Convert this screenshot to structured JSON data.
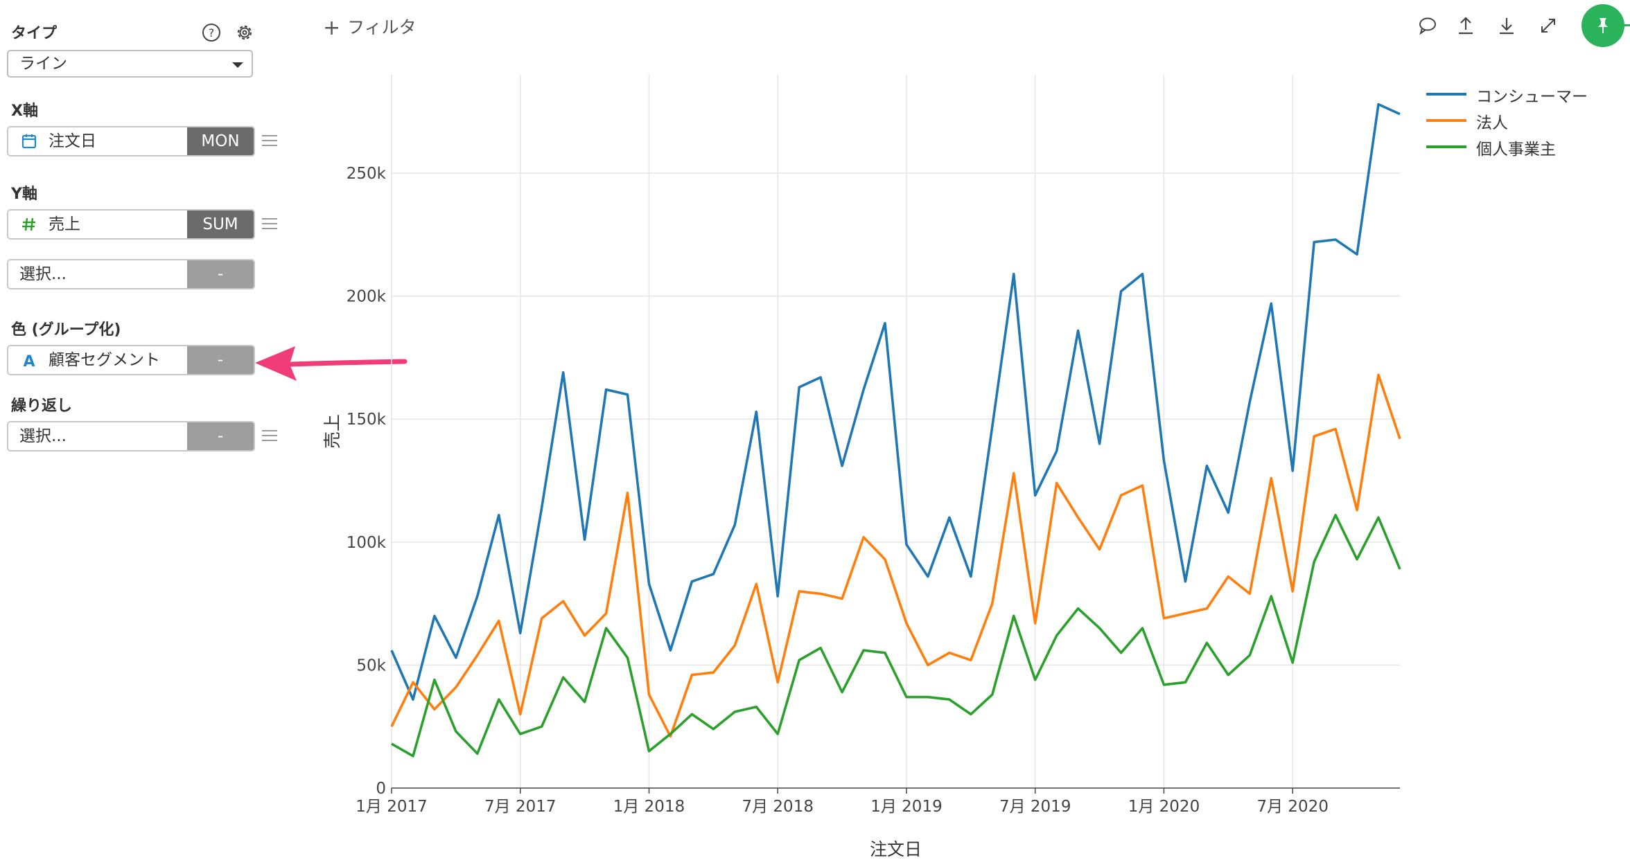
{
  "panel": {
    "type_label": "タイプ",
    "type_value": "ライン",
    "x_axis_label": "X軸",
    "x_field": {
      "name": "注文日",
      "agg": "MON",
      "icon": "calendar-icon"
    },
    "y_axis_label": "Y軸",
    "y_field": {
      "name": "売上",
      "agg": "SUM",
      "icon": "hash-icon"
    },
    "y_field2": {
      "placeholder": "選択...",
      "agg": "-"
    },
    "color_label": "色 (グループ化)",
    "color_field": {
      "name": "顧客セグメント",
      "agg": "-",
      "icon": "text-type-icon"
    },
    "repeat_label": "繰り返し",
    "repeat_field": {
      "placeholder": "選択...",
      "agg": "-"
    }
  },
  "toolbar": {
    "filter_label": "フィルタ",
    "accent": "#2ab35a"
  },
  "annotation": {
    "arrow_color": "#f03c78"
  },
  "chart_data": {
    "type": "line",
    "xlabel": "注文日",
    "ylabel": "売上",
    "ylim": [
      0,
      290000
    ],
    "yticks": [
      0,
      50000,
      100000,
      150000,
      200000,
      250000
    ],
    "ytick_labels": [
      "0",
      "50k",
      "100k",
      "150k",
      "200k",
      "250k"
    ],
    "xtick_indices": [
      0,
      6,
      12,
      18,
      24,
      30,
      36,
      42
    ],
    "xtick_labels": [
      "1月 2017",
      "7月 2017",
      "1月 2018",
      "7月 2018",
      "1月 2019",
      "7月 2019",
      "1月 2020",
      "7月 2020"
    ],
    "x": [
      "2017-01",
      "2017-02",
      "2017-03",
      "2017-04",
      "2017-05",
      "2017-06",
      "2017-07",
      "2017-08",
      "2017-09",
      "2017-10",
      "2017-11",
      "2017-12",
      "2018-01",
      "2018-02",
      "2018-03",
      "2018-04",
      "2018-05",
      "2018-06",
      "2018-07",
      "2018-08",
      "2018-09",
      "2018-10",
      "2018-11",
      "2018-12",
      "2019-01",
      "2019-02",
      "2019-03",
      "2019-04",
      "2019-05",
      "2019-06",
      "2019-07",
      "2019-08",
      "2019-09",
      "2019-10",
      "2019-11",
      "2019-12",
      "2020-01",
      "2020-02",
      "2020-03",
      "2020-04",
      "2020-05",
      "2020-06",
      "2020-07",
      "2020-08",
      "2020-09",
      "2020-10",
      "2020-11",
      "2020-12"
    ],
    "legend_position": "top-right",
    "grid": true,
    "series": [
      {
        "name": "コンシューマー",
        "color": "#1f77b4",
        "values": [
          56000,
          36000,
          70000,
          53000,
          78000,
          111000,
          63000,
          114000,
          169000,
          101000,
          162000,
          160000,
          83000,
          56000,
          84000,
          87000,
          107000,
          153000,
          78000,
          163000,
          167000,
          131000,
          162000,
          189000,
          99000,
          86000,
          110000,
          86000,
          147000,
          209000,
          119000,
          137000,
          186000,
          140000,
          202000,
          209000,
          133000,
          84000,
          131000,
          112000,
          157000,
          197000,
          129000,
          222000,
          223000,
          217000,
          278000,
          274000
        ]
      },
      {
        "name": "法人",
        "color": "#ff7f0e",
        "values": [
          25000,
          43000,
          32000,
          41000,
          54000,
          68000,
          30000,
          69000,
          76000,
          62000,
          71000,
          120000,
          38000,
          21000,
          46000,
          47000,
          58000,
          83000,
          43000,
          80000,
          79000,
          77000,
          102000,
          93000,
          67000,
          50000,
          55000,
          52000,
          75000,
          128000,
          67000,
          124000,
          110000,
          97000,
          119000,
          123000,
          69000,
          71000,
          73000,
          86000,
          79000,
          126000,
          80000,
          143000,
          146000,
          113000,
          168000,
          142000
        ]
      },
      {
        "name": "個人事業主",
        "color": "#2ca02c",
        "values": [
          18000,
          13000,
          44000,
          23000,
          14000,
          36000,
          22000,
          25000,
          45000,
          35000,
          65000,
          53000,
          15000,
          22000,
          30000,
          24000,
          31000,
          33000,
          22000,
          52000,
          57000,
          39000,
          56000,
          55000,
          37000,
          37000,
          36000,
          30000,
          38000,
          70000,
          44000,
          62000,
          73000,
          65000,
          55000,
          65000,
          42000,
          43000,
          59000,
          46000,
          54000,
          78000,
          51000,
          92000,
          111000,
          93000,
          110000,
          89000
        ]
      }
    ]
  }
}
